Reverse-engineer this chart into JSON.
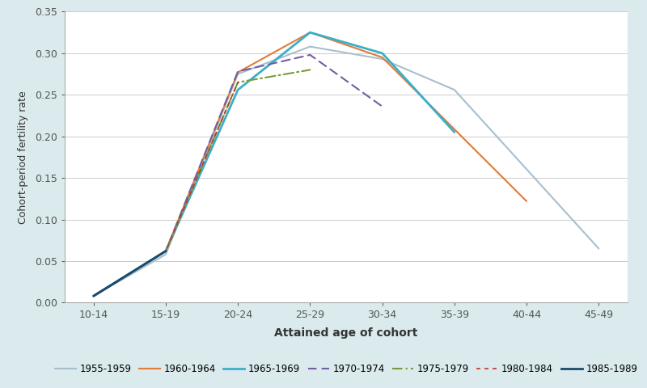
{
  "title": "",
  "xlabel": "Attained age of cohort",
  "ylabel": "Cohort-period fertility rate",
  "background_color": "#daeaed",
  "plot_background_color": "#ffffff",
  "x_labels": [
    "10-14",
    "15-19",
    "20-24",
    "25-29",
    "30-34",
    "35-39",
    "40-44",
    "45-49"
  ],
  "ylim": [
    0.0,
    0.35
  ],
  "yticks": [
    0.0,
    0.05,
    0.1,
    0.15,
    0.2,
    0.25,
    0.3,
    0.35
  ],
  "series": [
    {
      "label": "1955-1959",
      "color": "#a8bfce",
      "linestyle": "-",
      "linewidth": 1.5,
      "marker": null,
      "dashes": null,
      "data": [
        0.008,
        0.058,
        0.275,
        0.308,
        0.293,
        0.256,
        null,
        0.065
      ]
    },
    {
      "label": "1960-1964",
      "color": "#e07b3a",
      "linestyle": "-",
      "linewidth": 1.5,
      "marker": null,
      "dashes": null,
      "data": [
        0.008,
        0.062,
        0.277,
        0.325,
        0.295,
        null,
        0.122,
        null
      ]
    },
    {
      "label": "1965-1969",
      "color": "#3bafc8",
      "linestyle": "-",
      "linewidth": 2.0,
      "marker": null,
      "dashes": null,
      "data": [
        0.008,
        0.062,
        0.256,
        0.325,
        0.3,
        0.205,
        null,
        null
      ]
    },
    {
      "label": "1970-1974",
      "color": "#7060a0",
      "linestyle": "--",
      "linewidth": 1.5,
      "marker": null,
      "dashes": [
        5,
        3
      ],
      "data": [
        0.008,
        0.062,
        0.278,
        0.298,
        0.236,
        null,
        null,
        null
      ]
    },
    {
      "label": "1975-1979",
      "color": "#7a9a3a",
      "linestyle": "-.",
      "linewidth": 1.5,
      "marker": null,
      "dashes": [
        6,
        2,
        1,
        2
      ],
      "data": [
        0.008,
        0.062,
        0.265,
        0.28,
        null,
        null,
        null,
        null
      ]
    },
    {
      "label": "1980-1984",
      "color": "#c0392b",
      "linestyle": "--",
      "linewidth": 1.2,
      "marker": null,
      "dashes": [
        3,
        3
      ],
      "data": [
        0.008,
        0.062,
        0.265,
        null,
        null,
        null,
        null,
        null
      ]
    },
    {
      "label": "1985-1989",
      "color": "#1a4a6e",
      "linestyle": "-",
      "linewidth": 2.0,
      "marker": null,
      "dashes": null,
      "data": [
        0.008,
        0.062,
        null,
        null,
        null,
        null,
        null,
        null
      ]
    }
  ]
}
